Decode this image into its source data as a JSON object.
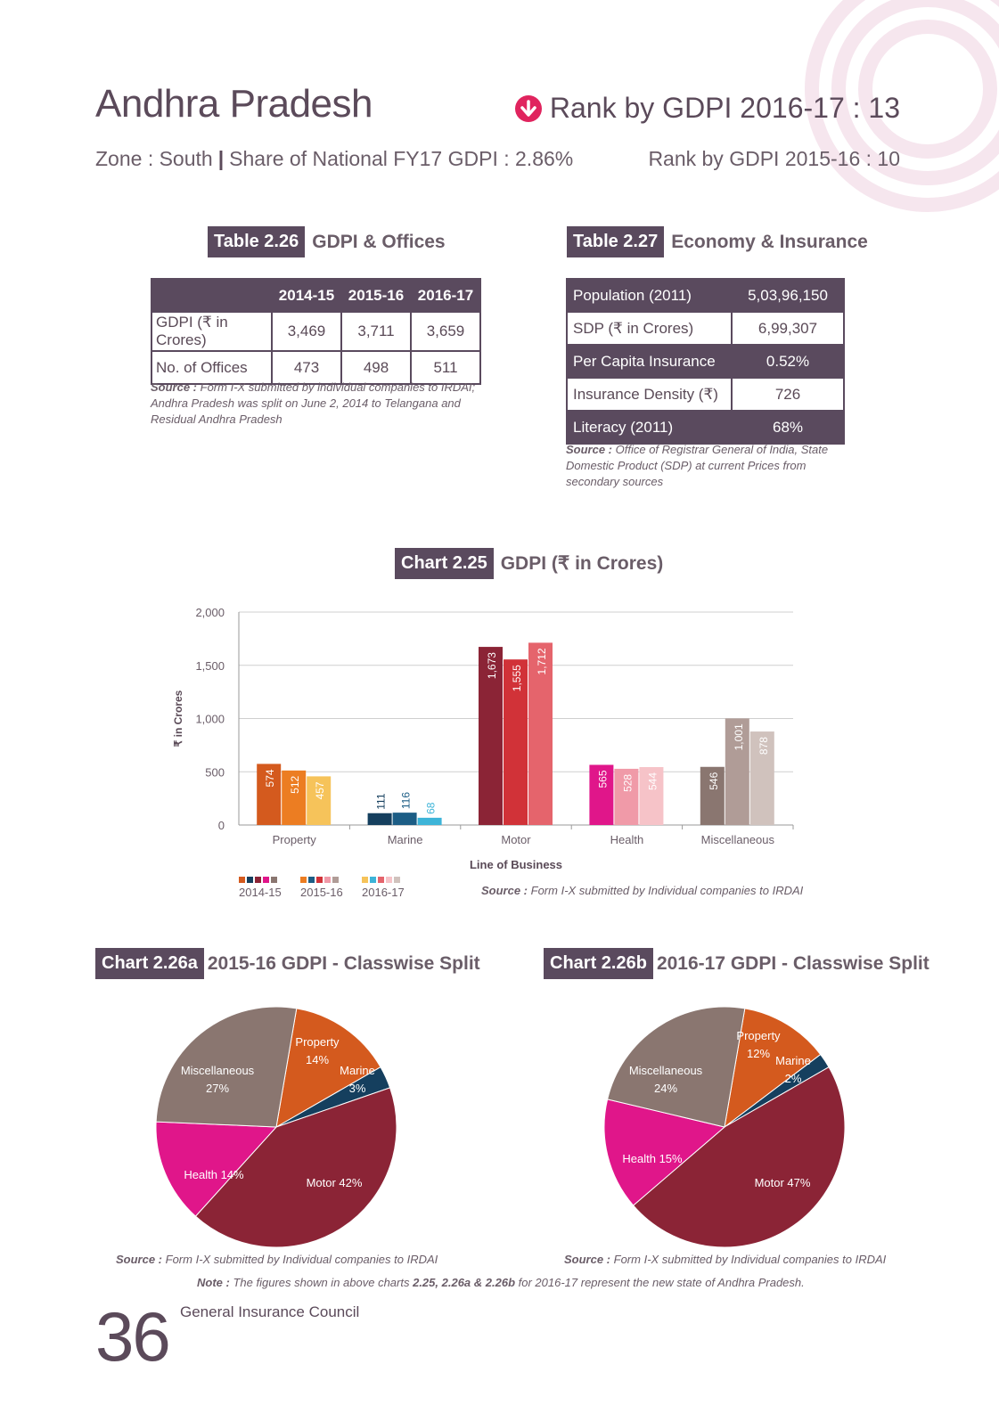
{
  "header": {
    "title": "Andhra Pradesh",
    "rank_current": "Rank by GDPI 2016-17 : 13",
    "zone": "Zone : South",
    "share": "Share of National FY17 GDPI : 2.86%",
    "rank_previous": "Rank by GDPI 2015-16 : 10",
    "rank_icon": "down-arrow-circle-icon",
    "accent_color": "#e0245e"
  },
  "table226": {
    "tag": "Table 2.26",
    "title": "GDPI & Offices",
    "columns": [
      "2014-15",
      "2015-16",
      "2016-17"
    ],
    "rows": [
      {
        "label": "GDPI (₹ in Crores)",
        "values": [
          "3,469",
          "3,711",
          "3,659"
        ]
      },
      {
        "label": "No. of Offices",
        "values": [
          "473",
          "498",
          "511"
        ]
      }
    ],
    "source_label": "Source :",
    "source_text": "Form I-X submitted by individual companies to IRDAI; Andhra Pradesh was split on June 2, 2014 to Telangana and Residual Andhra Pradesh"
  },
  "table227": {
    "tag": "Table 2.27",
    "title": "Economy & Insurance",
    "rows": [
      {
        "label": "Population (2011)",
        "value": "5,03,96,150"
      },
      {
        "label": "SDP (₹ in Crores)",
        "value": "6,99,307"
      },
      {
        "label": "Per Capita Insurance",
        "value": "0.52%"
      },
      {
        "label": "Insurance Density (₹)",
        "value": "726"
      },
      {
        "label": "Literacy (2011)",
        "value": "68%"
      }
    ],
    "source_label": "Source :",
    "source_text": "Office of Registrar General of India, State Domestic Product (SDP) at current Prices from secondary sources"
  },
  "chart_data": [
    {
      "type": "bar",
      "tag": "Chart 2.25",
      "title": "GDPI (₹ in Crores)",
      "categories": [
        "Property",
        "Marine",
        "Motor",
        "Health",
        "Miscellaneous"
      ],
      "series": [
        {
          "name": "2014-15",
          "values": [
            574,
            111,
            1673,
            565,
            546
          ]
        },
        {
          "name": "2015-16",
          "values": [
            512,
            116,
            1555,
            528,
            1001
          ]
        },
        {
          "name": "2016-17",
          "values": [
            457,
            68,
            1712,
            544,
            878
          ]
        }
      ],
      "value_labels": [
        [
          "574",
          "111",
          "1,673",
          "565",
          "546"
        ],
        [
          "512",
          "116",
          "1,555",
          "528",
          "1,001"
        ],
        [
          "457",
          "68",
          "1,712",
          "544",
          "878"
        ]
      ],
      "colors": [
        [
          "#d45a1e",
          "#153f5e",
          "#8b2436",
          "#e0168a",
          "#8a7670"
        ],
        [
          "#ec7d22",
          "#1c5d85",
          "#d13238",
          "#f09aa8",
          "#b09c97"
        ],
        [
          "#f6c35a",
          "#3db4d8",
          "#e5646c",
          "#f6c3c8",
          "#d0c2bd"
        ]
      ],
      "legend_colors": [
        [
          "#d45a1e",
          "#153f5e",
          "#8b2436",
          "#e0168a",
          "#8a7670"
        ],
        [
          "#ec7d22",
          "#1c5d85",
          "#d13238",
          "#f09aa8",
          "#b09c97"
        ],
        [
          "#f6c35a",
          "#3db4d8",
          "#e5646c",
          "#f6c3c8",
          "#d0c2bd"
        ]
      ],
      "xlabel": "Line of Business",
      "ylabel": "₹ in Crores",
      "ylim": [
        0,
        2000
      ],
      "yticks": [
        0,
        500,
        1000,
        1500,
        2000
      ],
      "ytick_labels": [
        "0",
        "500",
        "1,000",
        "1,500",
        "2,000"
      ],
      "legend_placement": "bottom-left",
      "grid": true,
      "source_label": "Source :",
      "source_text": "Form I-X submitted by Individual companies to IRDAI"
    },
    {
      "type": "pie",
      "tag": "Chart 2.26a",
      "title": "2015-16 GDPI - Classwise Split",
      "slices": [
        {
          "label": "Property",
          "value": 14,
          "text": "14%",
          "color": "#d45a1e"
        },
        {
          "label": "Marine",
          "value": 3,
          "text": "3%",
          "color": "#153f5e"
        },
        {
          "label": "Motor",
          "value": 42,
          "text": "Motor 42%",
          "color": "#8b2436"
        },
        {
          "label": "Health",
          "value": 14,
          "text": "Health 14%",
          "color": "#e0168a"
        },
        {
          "label": "Miscellaneous",
          "value": 27,
          "text": "27%",
          "color": "#8a7670"
        }
      ],
      "source_label": "Source :",
      "source_text": "Form I-X submitted by Individual companies to IRDAI"
    },
    {
      "type": "pie",
      "tag": "Chart 2.26b",
      "title": "2016-17 GDPI - Classwise Split",
      "slices": [
        {
          "label": "Property",
          "value": 12,
          "text": "12%",
          "color": "#d45a1e"
        },
        {
          "label": "Marine",
          "value": 2,
          "text": "2%",
          "color": "#153f5e"
        },
        {
          "label": "Motor",
          "value": 47,
          "text": "Motor 47%",
          "color": "#8b2436"
        },
        {
          "label": "Health",
          "value": 15,
          "text": "Health 15%",
          "color": "#e0168a"
        },
        {
          "label": "Miscellaneous",
          "value": 24,
          "text": "24%",
          "color": "#8a7670"
        }
      ],
      "source_label": "Source :",
      "source_text": "Form I-X submitted by Individual companies to IRDAI"
    }
  ],
  "note": {
    "label": "Note :",
    "text_before": "The figures shown in above charts",
    "charts": "2.25, 2.26a & 2.26b",
    "text_after": "for 2016-17 represent the new state of Andhra Pradesh."
  },
  "footer": {
    "page_number": "36",
    "publisher": "General Insurance Council"
  }
}
